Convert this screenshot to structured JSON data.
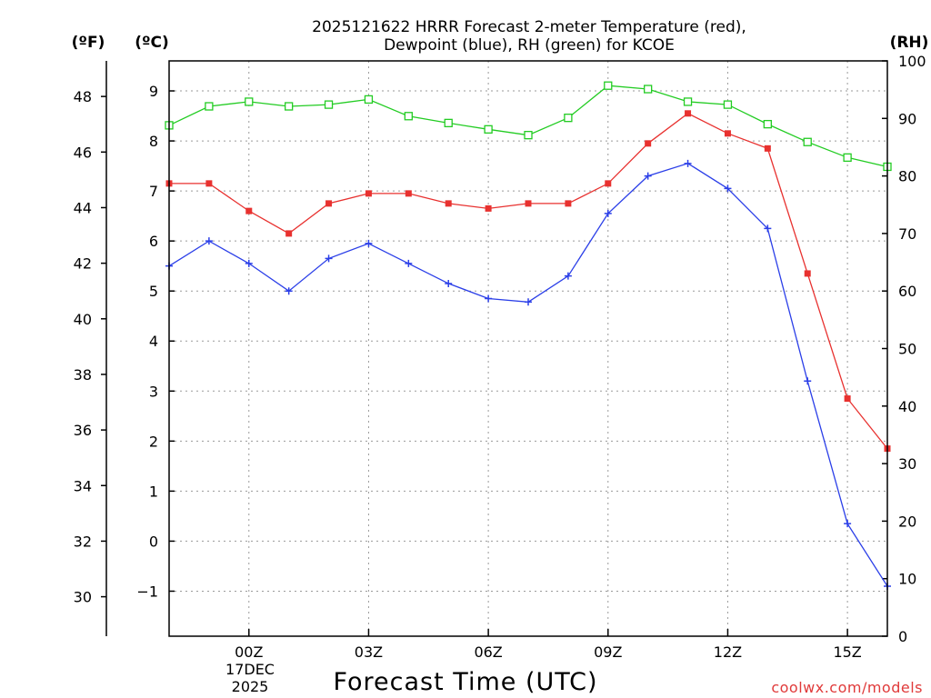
{
  "chart_data": {
    "type": "line",
    "title_line1": "2025121622 HRRR Forecast 2-meter Temperature (red),",
    "title_line2": "Dewpoint (blue), RH (green) for KCOE",
    "xlabel": "Forecast Time (UTC)",
    "left_outer_unit": "(ºF)",
    "left_inner_unit": "(ºC)",
    "right_unit": "(RH)",
    "x_hours": [
      -2,
      -1,
      0,
      1,
      2,
      3,
      4,
      5,
      6,
      7,
      8,
      9,
      10,
      11,
      12,
      13,
      14,
      15,
      16
    ],
    "x_range": [
      -2,
      16
    ],
    "x_tick_hours": [
      0,
      3,
      6,
      9,
      12,
      15
    ],
    "x_tick_labels": [
      "00Z",
      "03Z",
      "06Z",
      "09Z",
      "12Z",
      "15Z"
    ],
    "date_label_day": "17DEC",
    "date_label_year": "2025",
    "ylim_c": [
      -1.9,
      9.6
    ],
    "y_ticks_c": [
      -1,
      0,
      1,
      2,
      3,
      4,
      5,
      6,
      7,
      8,
      9
    ],
    "y_tick_labels_c": [
      "−1",
      "0",
      "1",
      "2",
      "3",
      "4",
      "5",
      "6",
      "7",
      "8",
      "9"
    ],
    "y_ticks_f": [
      30,
      32,
      34,
      36,
      38,
      40,
      42,
      44,
      46,
      48
    ],
    "y_tick_labels_f": [
      "30",
      "32",
      "34",
      "36",
      "38",
      "40",
      "42",
      "44",
      "46",
      "48"
    ],
    "ylim_rh": [
      0,
      100
    ],
    "y_ticks_rh": [
      0,
      10,
      20,
      30,
      40,
      50,
      60,
      70,
      80,
      90,
      100
    ],
    "y_tick_labels_rh": [
      "0",
      "10",
      "20",
      "30",
      "40",
      "50",
      "60",
      "70",
      "80",
      "90",
      "100"
    ],
    "series": [
      {
        "name": "Temperature",
        "unit": "C",
        "color": "#e8312f",
        "marker": "filled-square",
        "values": [
          7.15,
          7.15,
          6.6,
          6.15,
          6.75,
          6.95,
          6.95,
          6.75,
          6.65,
          6.75,
          6.75,
          7.15,
          7.95,
          8.55,
          8.15,
          7.85,
          5.35,
          2.85,
          1.85
        ]
      },
      {
        "name": "Dewpoint",
        "unit": "C",
        "color": "#2b3fe8",
        "marker": "plus",
        "values": [
          5.5,
          6.0,
          5.55,
          5.0,
          5.65,
          5.95,
          5.55,
          5.15,
          4.85,
          4.78,
          5.3,
          6.55,
          7.3,
          7.55,
          7.05,
          6.25,
          3.2,
          0.35,
          -0.9
        ]
      },
      {
        "name": "RH",
        "unit": "%",
        "color": "#22cc22",
        "marker": "open-square",
        "values": [
          88.8,
          92.1,
          92.9,
          92.1,
          92.4,
          93.3,
          90.4,
          89.2,
          88.1,
          87.1,
          90.1,
          95.7,
          95.1,
          92.9,
          92.4,
          89.0,
          85.9,
          83.2,
          81.6
        ]
      }
    ]
  },
  "credit": "coolwx.com/models"
}
